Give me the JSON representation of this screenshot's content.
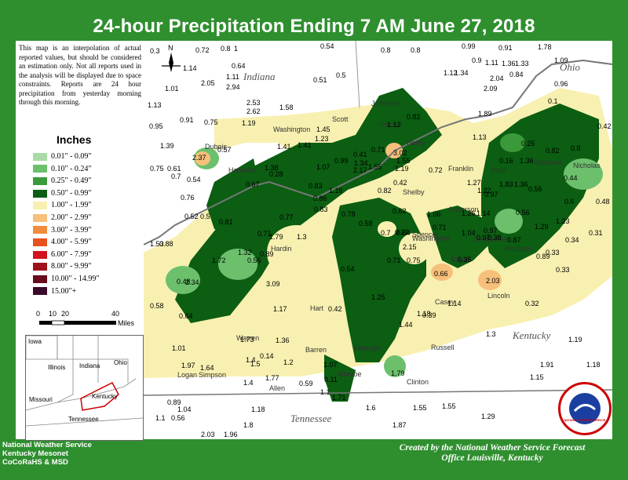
{
  "title": "24-hour Precipitation Ending 7 AM  June 27, 2018",
  "note": "This map is an interpolation of actual reported values, but should be considered an estimation only. Not all reports used in the analysis will be displayed due to space constraints. Reports are 24 hour precipitation from yesterday morning through this morning.",
  "legend": {
    "title": "Inches",
    "items": [
      {
        "label": "0.01\" - 0.09\"",
        "color": "#a8dba8"
      },
      {
        "label": "0.10\" - 0.24\"",
        "color": "#6cc06c"
      },
      {
        "label": "0.25\" - 0.49\"",
        "color": "#3a9a3a"
      },
      {
        "label": "0.50\" - 0.99\"",
        "color": "#0b5e12"
      },
      {
        "label": "1.00\" - 1.99\"",
        "color": "#f8f0b0"
      },
      {
        "label": "2.00\" - 2.99\"",
        "color": "#f6c07a"
      },
      {
        "label": "3.00\" - 3.99\"",
        "color": "#f28c3e"
      },
      {
        "label": "4.00\" - 5.99\"",
        "color": "#e8501c"
      },
      {
        "label": "6.00\" - 7.99\"",
        "color": "#d2141c"
      },
      {
        "label": "8.00\" - 9.99\"",
        "color": "#a0101c"
      },
      {
        "label": "10.00\" - 14.99\"",
        "color": "#6a0c1c"
      },
      {
        "label": "15.00\"+",
        "color": "#3a0a2a"
      }
    ]
  },
  "scale": {
    "ticks": [
      "0",
      "10",
      "20",
      "40"
    ],
    "unit": "Miles"
  },
  "north": "N",
  "states": {
    "indiana": "Indiana",
    "ohio": "Ohio",
    "kentucky": "Kentucky",
    "tennessee": "Tennessee"
  },
  "inset": {
    "iowa": "Iowa",
    "illinois": "Illinois",
    "indiana": "Indiana",
    "ohio": "Ohio",
    "missouri": "Missouri",
    "kentucky": "Kentucky",
    "tennessee": "Tennessee"
  },
  "counties": [
    "Jefferson",
    "Washington",
    "Scott",
    "Dubois",
    "Harrison",
    "Trimble",
    "Henry",
    "Franklin",
    "Scott",
    "Anderson",
    "Shelby",
    "Spencer",
    "Jessamine",
    "Washington",
    "Boyle",
    "Lincoln",
    "Casey",
    "Hardin",
    "Hart",
    "Warren",
    "Barren",
    "Metcalfe",
    "Russell",
    "Logan",
    "Simpson",
    "Allen",
    "Monroe",
    "Clinton",
    "Madison",
    "Bourbon",
    "Nicholas"
  ],
  "values": [
    "0.3",
    "0.72",
    "0.8",
    "1",
    "0.54",
    "0.8",
    "0.8",
    "0.99",
    "0.91",
    "1.78",
    "1.14",
    "0.64",
    "0.9",
    "1.11",
    "1.36",
    "1.33",
    "1.09",
    "1.01",
    "1.11",
    "0.51",
    "0.5",
    "1.12",
    "1.34",
    "2.04",
    "0.84",
    "0.96",
    "2.05",
    "2.94",
    "2.09",
    "1.13",
    "2.53",
    "1.58",
    "0.1",
    "2.62",
    "0.82",
    "1.89",
    "0.91",
    "0.75",
    "1.19",
    "1.45",
    "1.12",
    "0.42",
    "0.95",
    "1.41",
    "1.41",
    "1.23",
    "1.13",
    "0.25",
    "0.82",
    "0.8",
    "1.39",
    "0.57",
    "0.71",
    "3.02",
    "0.41",
    "2.37",
    "1.55",
    "0.16",
    "1.36",
    "0.99",
    "0.75",
    "0.61",
    "1.38",
    "1.07",
    "2.17",
    "1.55",
    "1.19",
    "0.44",
    "0.7",
    "0.28",
    "1.34",
    "0.72",
    "1.27",
    "1.83",
    "1.36",
    "0.54",
    "0.67",
    "0.83",
    "1.16",
    "0.82",
    "0.42",
    "0.97",
    "1.22",
    "0.56",
    "0.76",
    "0.86",
    "0.6",
    "0.48",
    "0.52",
    "0.5",
    "0.83",
    "0.62",
    "1.06",
    "1.26",
    "1.14",
    "0.97",
    "0.56",
    "0.81",
    "0.71",
    "0.77",
    "0.78",
    "0.58",
    "0.21",
    "0.89",
    "1.23",
    "0.31",
    "1.53",
    "0.88",
    "1.79",
    "1.3",
    "0.7",
    "0.64",
    "0.71",
    "1.04",
    "0.97",
    "1.29",
    "1.32",
    "0.89",
    "2.15",
    "0.75",
    "0.38",
    "0.34",
    "0.33",
    "1.72",
    "0.56",
    "0.71",
    "0.35",
    "0.87",
    "0.54",
    "0.33",
    "0.48",
    "2.34",
    "3.09",
    "0.66",
    "2.03",
    "1.25",
    "1.14",
    "0.32",
    "0.58",
    "1.17",
    "0.42",
    "1.18",
    "0.39",
    "0.64",
    "1.44",
    "1.3",
    "1.19",
    "1.01",
    "1.73",
    "1.36",
    "1.2",
    "1.5",
    "1.4",
    "0.14",
    "1.07",
    "1.79",
    "1.91",
    "1.18",
    "1.97",
    "1.64",
    "1.4",
    "1.77",
    "0.59",
    "0.11",
    "1.15",
    "1.1",
    "1.71",
    "0.89",
    "1.04",
    "1.18",
    "1.6",
    "1.55",
    "1.55",
    "1.1",
    "0.56",
    "1.29",
    "1.8",
    "1.87",
    "2.03",
    "1.96"
  ],
  "footer_left": [
    "National Weather Service",
    "Kentucky Mesonet",
    "CoCoRaHS & MSD"
  ],
  "footer_right": [
    "Created by the National Weather Service Forecast",
    "Office Louisville, Kentucky"
  ],
  "nws_logo": "NATIONAL WEATHER SERVICE"
}
